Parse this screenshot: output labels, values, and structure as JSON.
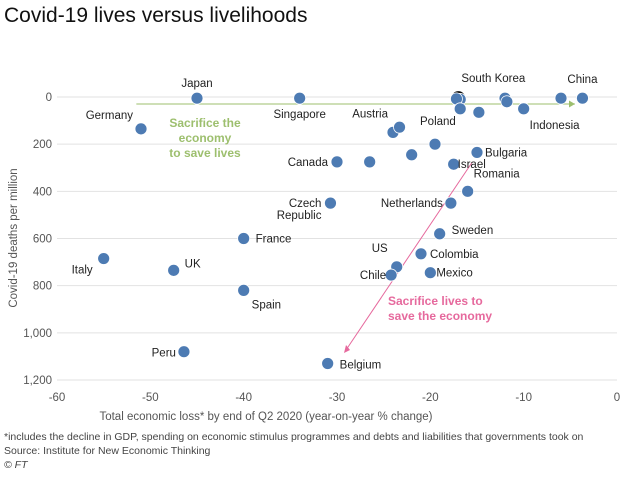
{
  "title": "Covid-19 lives versus livelihoods",
  "footnotes": {
    "note": "*includes the decline in GDP, spending on economic stimulus programmes and debts and liabilities that governments took on",
    "source": "Source: Institute for New Economic Thinking",
    "credit": "© FT"
  },
  "colors": {
    "point": "#4d7bb3",
    "point_stroke": "#ffffff",
    "highlight_stroke": "#111111",
    "grid": "#e2e2e2",
    "axis_text": "#555555",
    "green_annotation": "#9dbf6e",
    "pink_annotation": "#e6699d"
  },
  "chart_data": {
    "type": "scatter",
    "xlabel": "Total economic loss* by end of Q2 2020 (year-on-year % change)",
    "ylabel": "Covid-19 deaths per million",
    "xlim": [
      -60,
      0
    ],
    "ylim": [
      1200,
      0
    ],
    "x_ticks": [
      -60,
      -50,
      -40,
      -30,
      -20,
      -10,
      0
    ],
    "x_tick_labels": [
      "-60",
      "-50",
      "-40",
      "-30",
      "-20",
      "-10",
      "0"
    ],
    "y_ticks": [
      0,
      200,
      400,
      600,
      800,
      1000,
      1200
    ],
    "y_tick_labels": [
      "0",
      "200",
      "400",
      "600",
      "800",
      "1,000",
      "1,200"
    ],
    "grid": "horizontal",
    "points": [
      {
        "x": -45,
        "y": 5,
        "label": "Japan"
      },
      {
        "x": -34,
        "y": 5,
        "label": "Singapore"
      },
      {
        "x": -51,
        "y": 135,
        "label": "Germany"
      },
      {
        "x": -24,
        "y": 150,
        "label": "Austria"
      },
      {
        "x": -23.3,
        "y": 128,
        "label": ""
      },
      {
        "x": -19.5,
        "y": 200,
        "label": "Poland"
      },
      {
        "x": -22,
        "y": 245,
        "label": ""
      },
      {
        "x": -30,
        "y": 275,
        "label": "Canada"
      },
      {
        "x": -26.5,
        "y": 275,
        "label": ""
      },
      {
        "x": -15,
        "y": 235,
        "label": "Bulgaria"
      },
      {
        "x": -17.5,
        "y": 285,
        "label": "Israel"
      },
      {
        "x": -16,
        "y": 400,
        "label": "Romania"
      },
      {
        "x": -17.8,
        "y": 450,
        "label": "Netherlands"
      },
      {
        "x": -30.7,
        "y": 450,
        "label": "Czech Republic"
      },
      {
        "x": -19,
        "y": 580,
        "label": "Sweden"
      },
      {
        "x": -40,
        "y": 600,
        "label": "France"
      },
      {
        "x": -21,
        "y": 665,
        "label": "Colombia"
      },
      {
        "x": -55,
        "y": 685,
        "label": "Italy"
      },
      {
        "x": -47.5,
        "y": 735,
        "label": "UK"
      },
      {
        "x": -23.6,
        "y": 720,
        "label": "US"
      },
      {
        "x": -24.2,
        "y": 755,
        "label": "Chile"
      },
      {
        "x": -20,
        "y": 745,
        "label": "Mexico"
      },
      {
        "x": -40,
        "y": 820,
        "label": "Spain"
      },
      {
        "x": -46.4,
        "y": 1080,
        "label": "Peru"
      },
      {
        "x": -31,
        "y": 1130,
        "label": "Belgium"
      },
      {
        "x": -17,
        "y": 5,
        "label": "South Korea",
        "highlight": true
      },
      {
        "x": -16.8,
        "y": 10,
        "label": ""
      },
      {
        "x": -17.2,
        "y": 8,
        "label": ""
      },
      {
        "x": -12,
        "y": 5,
        "label": ""
      },
      {
        "x": -11.8,
        "y": 20,
        "label": ""
      },
      {
        "x": -16.8,
        "y": 50,
        "label": ""
      },
      {
        "x": -14.8,
        "y": 65,
        "label": ""
      },
      {
        "x": -10,
        "y": 50,
        "label": "Indonesia"
      },
      {
        "x": -6,
        "y": 5,
        "label": ""
      },
      {
        "x": -3.7,
        "y": 5,
        "label": "China"
      }
    ],
    "annotations": [
      {
        "text": [
          "Sacrifice the",
          "economy",
          "to save lives"
        ],
        "color": "green"
      },
      {
        "text": [
          "Sacrifice lives to",
          "save the economy"
        ],
        "color": "pink"
      }
    ]
  }
}
